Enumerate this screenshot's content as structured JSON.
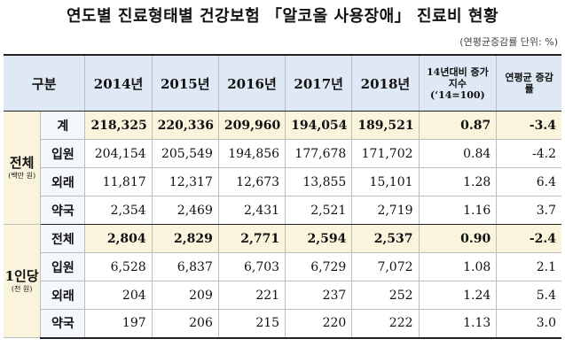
{
  "title": "연도별 진료형태별 건강보험 「알코올 사용장애」 진료비 현황",
  "unit_note": "(연평균증감률 단위: %)",
  "headers": {
    "category": "구분",
    "years": [
      "2014년",
      "2015년",
      "2016년",
      "2017년",
      "2018년"
    ],
    "index": "14년대비 증가지수 (‘14=100)",
    "cagr": "연평균 증감률"
  },
  "groups": [
    {
      "label": "전체",
      "note": "(백만 원)",
      "rows": [
        {
          "label": "계",
          "values": [
            "218,325",
            "220,336",
            "209,960",
            "194,054",
            "189,521"
          ],
          "index": "0.87",
          "cagr": "-3.4"
        },
        {
          "label": "입원",
          "values": [
            "204,154",
            "205,549",
            "194,856",
            "177,678",
            "171,702"
          ],
          "index": "0.84",
          "cagr": "-4.2"
        },
        {
          "label": "외래",
          "values": [
            "11,817",
            "12,317",
            "12,673",
            "13,855",
            "15,101"
          ],
          "index": "1.28",
          "cagr": "6.4"
        },
        {
          "label": "약국",
          "values": [
            "2,354",
            "2,469",
            "2,431",
            "2,521",
            "2,719"
          ],
          "index": "1.16",
          "cagr": "3.7"
        }
      ]
    },
    {
      "label": "1인당",
      "note": "(천 원)",
      "rows": [
        {
          "label": "전체",
          "values": [
            "2,804",
            "2,829",
            "2,771",
            "2,594",
            "2,537"
          ],
          "index": "0.90",
          "cagr": "-2.4"
        },
        {
          "label": "입원",
          "values": [
            "6,528",
            "6,837",
            "6,703",
            "6,729",
            "7,072"
          ],
          "index": "1.08",
          "cagr": "2.1"
        },
        {
          "label": "외래",
          "values": [
            "204",
            "209",
            "221",
            "237",
            "252"
          ],
          "index": "1.24",
          "cagr": "5.4"
        },
        {
          "label": "약국",
          "values": [
            "197",
            "206",
            "215",
            "220",
            "222"
          ],
          "index": "1.13",
          "cagr": "3.0"
        }
      ]
    }
  ]
}
